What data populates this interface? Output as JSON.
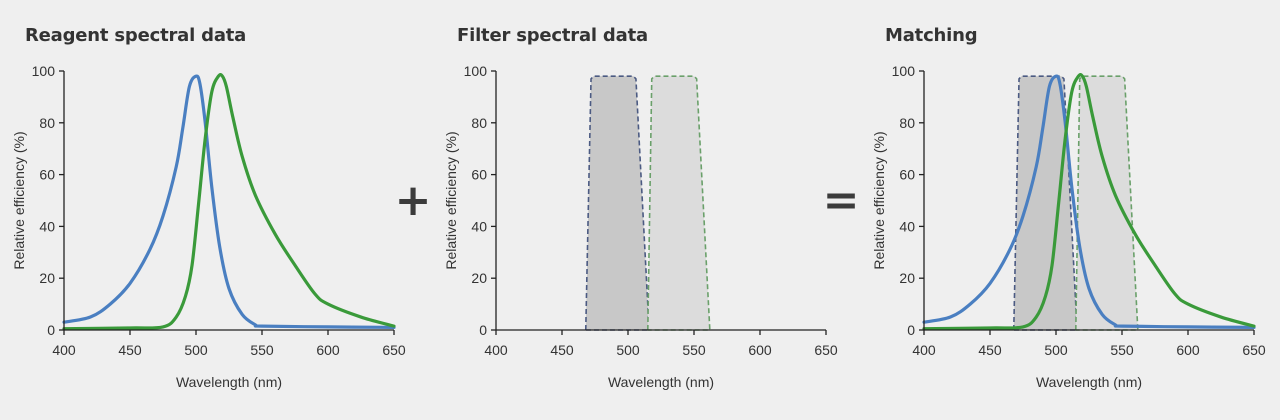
{
  "colors": {
    "reagent_a": "#4a7fc1",
    "reagent_b": "#3a9a3a",
    "filter_a_fill": "#c8c8c8",
    "filter_a_stroke": "#4b5a82",
    "filter_b_fill": "#dcdcdc",
    "filter_b_stroke": "#6aa06a",
    "axis": "#222222"
  },
  "operators": {
    "plus": "+",
    "equals": "="
  },
  "chart_data": [
    {
      "type": "line",
      "title": "Reagent spectral data",
      "xlabel": "Wavelength (nm)",
      "ylabel": "Relative efficiency (%)",
      "xlim": [
        400,
        650
      ],
      "ylim": [
        0,
        100
      ],
      "xticks": [
        "400",
        "450",
        "500",
        "550",
        "600",
        "650"
      ],
      "yticks": [
        "0",
        "20",
        "40",
        "60",
        "80",
        "100"
      ],
      "grid": false,
      "series": [
        {
          "color": "#4a7fc1",
          "style": "solid",
          "x": [
            400,
            420,
            435,
            450,
            465,
            475,
            485,
            490,
            495,
            500,
            503,
            507,
            512,
            518,
            525,
            535,
            545,
            550,
            600,
            650
          ],
          "y": [
            3,
            5,
            10,
            18,
            31,
            44,
            63,
            78,
            94,
            98,
            95,
            80,
            55,
            32,
            16,
            6,
            2,
            1.5,
            1.2,
            1
          ]
        },
        {
          "color": "#3a9a3a",
          "style": "solid",
          "x": [
            400,
            450,
            475,
            485,
            492,
            497,
            502,
            507,
            512,
            517,
            520,
            523,
            528,
            535,
            545,
            560,
            575,
            590,
            600,
            625,
            650
          ],
          "y": [
            0.5,
            0.8,
            1.2,
            5,
            13,
            25,
            49,
            74,
            92,
            98,
            98,
            94,
            82,
            67,
            52,
            37,
            25,
            14,
            10,
            5,
            1.5
          ]
        }
      ]
    },
    {
      "type": "area",
      "title": "Filter spectral data",
      "xlabel": "Wavelength (nm)",
      "ylabel": "Relative efficiency (%)",
      "xlim": [
        400,
        650
      ],
      "ylim": [
        0,
        100
      ],
      "xticks": [
        "400",
        "450",
        "500",
        "550",
        "600",
        "650"
      ],
      "yticks": [
        "0",
        "20",
        "40",
        "60",
        "80",
        "100"
      ],
      "grid": false,
      "series": [
        {
          "color": "#4b5a82",
          "fill": "#c8c8c8",
          "style": "dashed",
          "x": [
            468,
            472,
            474,
            504,
            506,
            516
          ],
          "y": [
            0,
            97,
            98,
            98,
            97,
            0
          ]
        },
        {
          "color": "#6aa06a",
          "fill": "#dcdcdc",
          "style": "dashed",
          "x": [
            515,
            518,
            520,
            550,
            552,
            562
          ],
          "y": [
            0,
            97,
            98,
            98,
            97,
            0
          ]
        }
      ]
    },
    {
      "type": "line",
      "title": "Matching",
      "xlabel": "Wavelength (nm)",
      "ylabel": "Relative efficiency (%)",
      "xlim": [
        400,
        650
      ],
      "ylim": [
        0,
        100
      ],
      "xticks": [
        "400",
        "450",
        "500",
        "550",
        "600",
        "650"
      ],
      "yticks": [
        "0",
        "20",
        "40",
        "60",
        "80",
        "100"
      ],
      "grid": false,
      "series": [
        {
          "color": "#4b5a82",
          "fill": "#c8c8c8",
          "style": "dashed",
          "x": [
            468,
            472,
            474,
            504,
            506,
            516
          ],
          "y": [
            0,
            97,
            98,
            98,
            97,
            0
          ]
        },
        {
          "color": "#6aa06a",
          "fill": "#dcdcdc",
          "style": "dashed",
          "x": [
            515,
            518,
            520,
            550,
            552,
            562
          ],
          "y": [
            0,
            97,
            98,
            98,
            97,
            0
          ]
        },
        {
          "color": "#4a7fc1",
          "style": "solid",
          "x": [
            400,
            420,
            435,
            450,
            465,
            475,
            485,
            490,
            495,
            500,
            503,
            507,
            512,
            518,
            525,
            535,
            545,
            550,
            600,
            650
          ],
          "y": [
            3,
            5,
            10,
            18,
            31,
            44,
            63,
            78,
            94,
            98,
            95,
            80,
            55,
            32,
            16,
            6,
            2,
            1.5,
            1.2,
            1
          ]
        },
        {
          "color": "#3a9a3a",
          "style": "solid",
          "x": [
            400,
            450,
            475,
            485,
            492,
            497,
            502,
            507,
            512,
            517,
            520,
            523,
            528,
            535,
            545,
            560,
            575,
            590,
            600,
            625,
            650
          ],
          "y": [
            0.5,
            0.8,
            1.2,
            5,
            13,
            25,
            49,
            74,
            92,
            98,
            98,
            94,
            82,
            67,
            52,
            37,
            25,
            14,
            10,
            5,
            1.5
          ]
        }
      ]
    }
  ]
}
